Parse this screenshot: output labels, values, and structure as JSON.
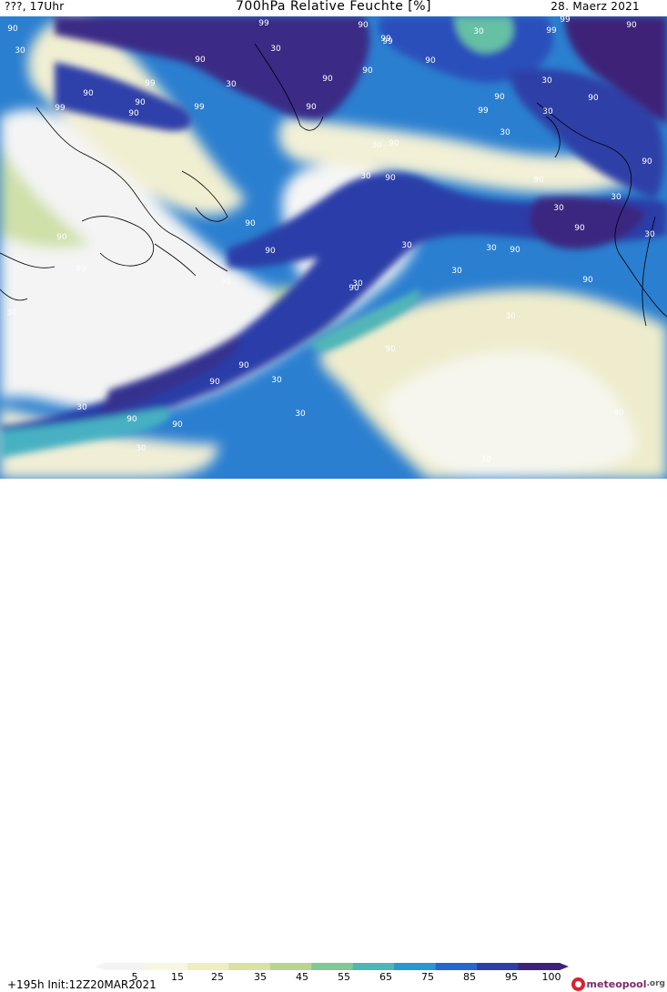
{
  "header": {
    "left_text": "???, 17Uhr",
    "title": "700hPa Relative Feuchte [%]",
    "date": "28. Maerz 2021"
  },
  "colorbar": {
    "ticks": [
      "5",
      "15",
      "25",
      "35",
      "45",
      "55",
      "65",
      "75",
      "85",
      "95",
      "100"
    ],
    "colors": [
      "#f3f3f3",
      "#f7f6df",
      "#f0edbf",
      "#dbe0a3",
      "#b7d493",
      "#7fc995",
      "#4fb6b6",
      "#2b97cf",
      "#2666cf",
      "#2d3fa7",
      "#3c2378"
    ]
  },
  "footer": {
    "run_info": "+195h Init:12Z20MAR2021",
    "logo": "meteopool",
    "logo_ext": ".org"
  },
  "map_labels": [
    "90",
    "30",
    "99",
    "30",
    "90",
    "99",
    "90",
    "99",
    "99",
    "30",
    "99",
    "90",
    "99",
    "90",
    "90",
    "90",
    "30",
    "99",
    "90",
    "99",
    "90",
    "99",
    "90",
    "90",
    "90",
    "99",
    "30",
    "30",
    "90",
    "30",
    "90",
    "30",
    "90",
    "30",
    "90",
    "90",
    "30",
    "30",
    "90",
    "90",
    "90",
    "90",
    "30",
    "90",
    "30",
    "30",
    "90",
    "99",
    "30",
    "90",
    "30",
    "90",
    "30",
    "30",
    "90",
    "90",
    "90",
    "30",
    "90",
    "90",
    "30",
    "30",
    "30",
    "90",
    "90",
    "30",
    "30",
    "30",
    "30",
    "30"
  ]
}
